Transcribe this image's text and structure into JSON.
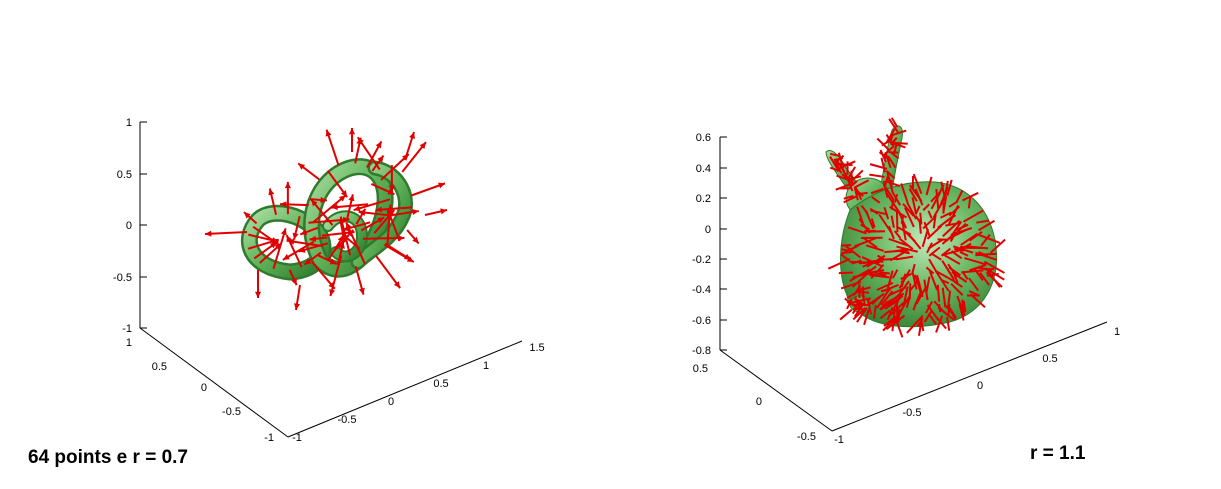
{
  "left_panel": {
    "caption": "64 points e r = 0.7",
    "z_ticks": [
      "1",
      "0.5",
      "0",
      "-0.5",
      "-1"
    ],
    "y_ticks": [
      "1",
      "0.5",
      "0",
      "-0.5",
      "-1"
    ],
    "x_ticks": [
      "-1",
      "-0.5",
      "0",
      "0.5",
      "1",
      "1.5"
    ]
  },
  "right_panel": {
    "caption": "r = 1.1",
    "z_ticks": [
      "0.6",
      "0.4",
      "0.2",
      "0",
      "-0.2",
      "-0.4",
      "-0.6",
      "-0.8"
    ],
    "y_ticks": [
      "0.5",
      "0",
      "-0.5"
    ],
    "x_ticks": [
      "-1",
      "-0.5",
      "0",
      "0.5",
      "1"
    ]
  },
  "colors": {
    "surface": "#5fb35a",
    "surface_light": "#a8dca0",
    "surface_dark": "#2f7a2c",
    "arrow": "#e00000",
    "axis": "#000000"
  }
}
